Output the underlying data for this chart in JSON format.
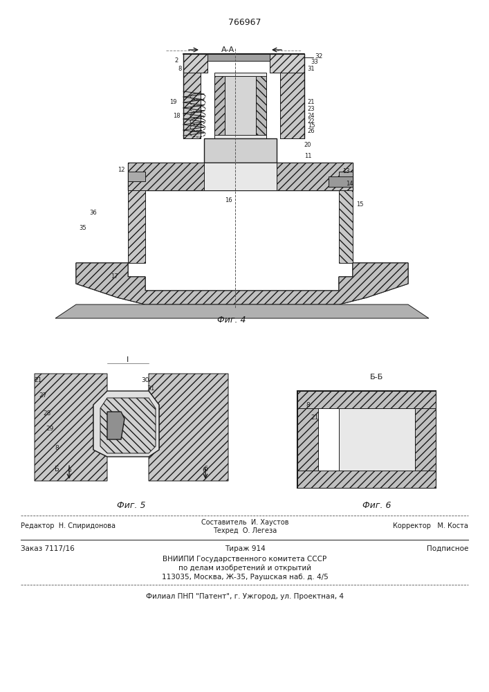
{
  "patent_number": "766967",
  "fig4_caption": "Фиг. 4",
  "fig5_caption": "Фиг. 5",
  "fig6_caption": "Фиг. 6",
  "section_AA": "А-А",
  "section_BB": "Б-Б",
  "section_I": "I",
  "bg_color": "#ffffff",
  "line_color": "#1a1a1a",
  "hatch_color": "#333333",
  "footer_line1_left": "Редактор  Н. Спиридонова",
  "footer_line1_center": "Составитель  И. Хаустов\nТехред  О. Легеза",
  "footer_line1_right": "Корректор   М. Коста",
  "footer_line2_left": "Заказ 7117/16",
  "footer_line2_center": "Тираж 914",
  "footer_line2_right": "Подписное",
  "footer_line3": "ВНИИПИ Государственного комитета СССР",
  "footer_line4": "по делам изобретений и открытий",
  "footer_line5": "113035, Москва, Ж-35, Раушская наб. д. 4/5",
  "footer_bottom": "Филиал ПНП \"Патент\", г. Ужгород, ул. Проектная, 4"
}
